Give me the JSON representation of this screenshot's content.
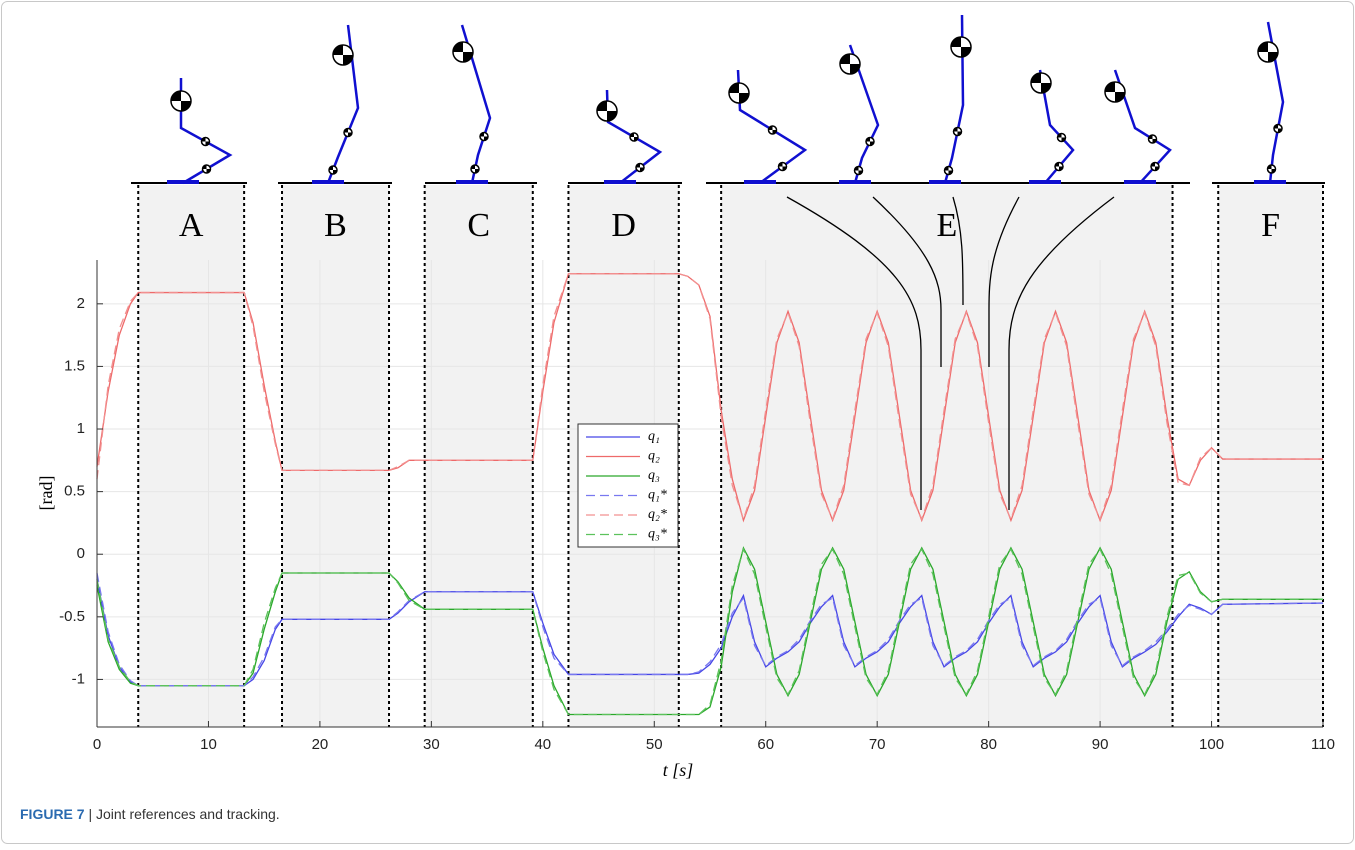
{
  "chart_data": {
    "type": "line",
    "xlabel": "t [s]",
    "ylabel": "[rad]",
    "xlim": [
      0,
      110
    ],
    "ylim": [
      -1.38,
      2.35
    ],
    "xticks": [
      0,
      10,
      20,
      30,
      40,
      50,
      60,
      70,
      80,
      90,
      100,
      110
    ],
    "yticks": [
      -1,
      -0.5,
      0,
      0.5,
      1,
      1.5,
      2
    ],
    "grid": true,
    "regions": [
      {
        "label": "A",
        "start": 3.7,
        "end": 13.2
      },
      {
        "label": "B",
        "start": 16.6,
        "end": 26.2
      },
      {
        "label": "C",
        "start": 29.4,
        "end": 39.1
      },
      {
        "label": "D",
        "start": 42.3,
        "end": 52.2
      },
      {
        "label": "E",
        "start": 56,
        "end": 96.5
      },
      {
        "label": "F",
        "start": 100.6,
        "end": 110
      }
    ],
    "x": [
      0,
      1,
      2,
      3,
      3.7,
      13.2,
      14,
      15,
      16,
      16.6,
      26.2,
      27,
      28,
      29.4,
      39.1,
      40,
      41,
      42.3,
      52.2,
      53,
      54,
      55,
      56,
      57,
      58,
      59,
      60,
      61,
      62,
      63,
      64,
      65,
      66,
      67,
      68,
      69,
      70,
      71,
      72,
      73,
      74,
      75,
      76,
      77,
      78,
      79,
      80,
      81,
      82,
      83,
      84,
      85,
      86,
      87,
      88,
      89,
      90,
      91,
      92,
      93,
      94,
      95,
      96,
      97,
      98,
      99,
      100,
      101,
      110
    ],
    "series": [
      {
        "name": "q₁",
        "color": "#4646e6",
        "dashed": false,
        "values": [
          -0.2,
          -0.65,
          -0.9,
          -1.02,
          -1.05,
          -1.05,
          -1.0,
          -0.85,
          -0.6,
          -0.52,
          -0.52,
          -0.47,
          -0.38,
          -0.3,
          -0.3,
          -0.55,
          -0.8,
          -0.96,
          -0.96,
          -0.96,
          -0.95,
          -0.88,
          -0.75,
          -0.5,
          -0.33,
          -0.7,
          -0.9,
          -0.83,
          -0.78,
          -0.7,
          -0.55,
          -0.42,
          -0.33,
          -0.7,
          -0.9,
          -0.83,
          -0.78,
          -0.7,
          -0.55,
          -0.42,
          -0.33,
          -0.7,
          -0.9,
          -0.83,
          -0.78,
          -0.7,
          -0.55,
          -0.42,
          -0.33,
          -0.7,
          -0.9,
          -0.83,
          -0.78,
          -0.7,
          -0.55,
          -0.42,
          -0.33,
          -0.7,
          -0.9,
          -0.83,
          -0.78,
          -0.72,
          -0.62,
          -0.5,
          -0.4,
          -0.43,
          -0.48,
          -0.4,
          -0.39
        ]
      },
      {
        "name": "q₂",
        "color": "#ee6a6a",
        "dashed": false,
        "values": [
          0.7,
          1.3,
          1.75,
          2.0,
          2.09,
          2.09,
          1.85,
          1.35,
          0.9,
          0.67,
          0.67,
          0.69,
          0.75,
          0.75,
          0.75,
          1.3,
          1.85,
          2.24,
          2.24,
          2.22,
          2.15,
          1.9,
          1.15,
          0.6,
          0.27,
          0.51,
          1.1,
          1.69,
          1.94,
          1.69,
          1.1,
          0.51,
          0.27,
          0.51,
          1.1,
          1.69,
          1.94,
          1.69,
          1.1,
          0.51,
          0.27,
          0.51,
          1.1,
          1.69,
          1.94,
          1.69,
          1.1,
          0.51,
          0.27,
          0.51,
          1.1,
          1.69,
          1.94,
          1.69,
          1.1,
          0.51,
          0.27,
          0.51,
          1.1,
          1.69,
          1.94,
          1.69,
          1.1,
          0.6,
          0.55,
          0.75,
          0.85,
          0.76,
          0.76
        ]
      },
      {
        "name": "q₃",
        "color": "#2aa82a",
        "dashed": false,
        "values": [
          -0.25,
          -0.7,
          -0.92,
          -1.03,
          -1.05,
          -1.05,
          -0.95,
          -0.6,
          -0.3,
          -0.15,
          -0.15,
          -0.22,
          -0.35,
          -0.44,
          -0.44,
          -0.75,
          -1.05,
          -1.28,
          -1.28,
          -1.28,
          -1.28,
          -1.22,
          -0.9,
          -0.3,
          0.05,
          -0.12,
          -0.54,
          -0.96,
          -1.13,
          -0.96,
          -0.54,
          -0.12,
          0.05,
          -0.12,
          -0.54,
          -0.96,
          -1.13,
          -0.96,
          -0.54,
          -0.12,
          0.05,
          -0.12,
          -0.54,
          -0.96,
          -1.13,
          -0.96,
          -0.54,
          -0.12,
          0.05,
          -0.12,
          -0.54,
          -0.96,
          -1.13,
          -0.96,
          -0.54,
          -0.12,
          0.05,
          -0.12,
          -0.54,
          -0.96,
          -1.13,
          -0.96,
          -0.54,
          -0.2,
          -0.14,
          -0.3,
          -0.38,
          -0.36,
          -0.36
        ]
      },
      {
        "name": "q₁*",
        "color": "#7878f0",
        "dashed": true,
        "values": [
          -0.15,
          -0.62,
          -0.88,
          -1.01,
          -1.05,
          -1.05,
          -0.98,
          -0.82,
          -0.58,
          -0.52,
          -0.52,
          -0.46,
          -0.37,
          -0.3,
          -0.3,
          -0.58,
          -0.83,
          -0.96,
          -0.96,
          -0.96,
          -0.94,
          -0.86,
          -0.72,
          -0.47,
          -0.35,
          -0.73,
          -0.89,
          -0.82,
          -0.77,
          -0.68,
          -0.53,
          -0.4,
          -0.35,
          -0.73,
          -0.89,
          -0.82,
          -0.77,
          -0.68,
          -0.53,
          -0.4,
          -0.35,
          -0.73,
          -0.89,
          -0.82,
          -0.77,
          -0.68,
          -0.53,
          -0.4,
          -0.35,
          -0.73,
          -0.89,
          -0.82,
          -0.77,
          -0.68,
          -0.53,
          -0.4,
          -0.35,
          -0.73,
          -0.89,
          -0.82,
          -0.77,
          -0.7,
          -0.6,
          -0.48,
          -0.41,
          -0.44,
          -0.48,
          -0.4,
          -0.39
        ]
      },
      {
        "name": "q₂*",
        "color": "#f29090",
        "dashed": true,
        "values": [
          0.6,
          1.35,
          1.8,
          2.02,
          2.09,
          2.09,
          1.82,
          1.3,
          0.88,
          0.67,
          0.67,
          0.7,
          0.75,
          0.75,
          0.75,
          1.35,
          1.9,
          2.24,
          2.24,
          2.22,
          2.15,
          1.88,
          1.1,
          0.55,
          0.28,
          0.55,
          1.15,
          1.72,
          1.93,
          1.66,
          1.05,
          0.48,
          0.28,
          0.55,
          1.15,
          1.72,
          1.93,
          1.66,
          1.05,
          0.48,
          0.28,
          0.55,
          1.15,
          1.72,
          1.93,
          1.66,
          1.05,
          0.48,
          0.28,
          0.55,
          1.15,
          1.72,
          1.93,
          1.66,
          1.05,
          0.48,
          0.28,
          0.55,
          1.15,
          1.72,
          1.93,
          1.66,
          1.05,
          0.57,
          0.55,
          0.77,
          0.85,
          0.76,
          0.76
        ]
      },
      {
        "name": "q₃*",
        "color": "#5cc25c",
        "dashed": true,
        "values": [
          -0.2,
          -0.68,
          -0.9,
          -1.02,
          -1.05,
          -1.05,
          -0.92,
          -0.55,
          -0.27,
          -0.15,
          -0.15,
          -0.23,
          -0.37,
          -0.44,
          -0.44,
          -0.78,
          -1.08,
          -1.28,
          -1.28,
          -1.28,
          -1.28,
          -1.2,
          -0.85,
          -0.25,
          0.04,
          -0.16,
          -0.58,
          -0.99,
          -1.12,
          -0.93,
          -0.5,
          -0.08,
          0.04,
          -0.16,
          -0.58,
          -0.99,
          -1.12,
          -0.93,
          -0.5,
          -0.08,
          0.04,
          -0.16,
          -0.58,
          -0.99,
          -1.12,
          -0.93,
          -0.5,
          -0.08,
          0.04,
          -0.16,
          -0.58,
          -0.99,
          -1.12,
          -0.93,
          -0.5,
          -0.08,
          0.04,
          -0.16,
          -0.58,
          -0.99,
          -1.12,
          -0.93,
          -0.5,
          -0.17,
          -0.15,
          -0.31,
          -0.38,
          -0.36,
          -0.36
        ]
      }
    ],
    "caption_label": "FIGURE 7",
    "caption_text": "| Joint references and tracking."
  }
}
